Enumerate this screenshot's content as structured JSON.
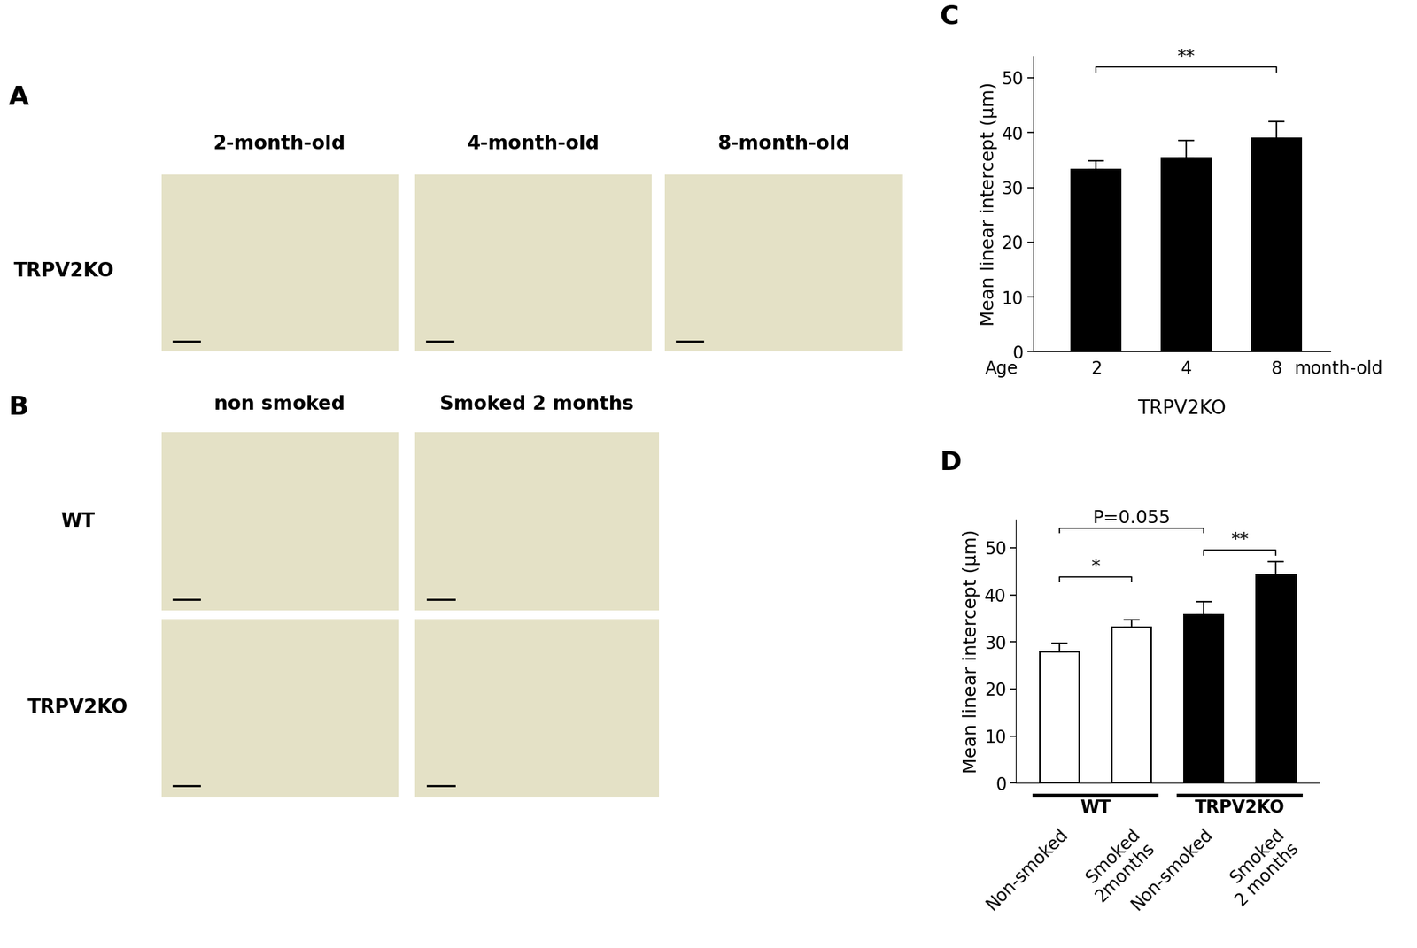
{
  "panels": [
    {
      "label": "A",
      "column_labels": [
        "2-month-old",
        "4-month-old",
        "8-month-old"
      ],
      "row_labels": [
        "TRPV2KO"
      ]
    },
    {
      "label": "B",
      "column_labels": [
        "non smoked",
        "Smoked 2 months"
      ],
      "row_labels": [
        "WT",
        "TRPV2KO"
      ]
    }
  ],
  "chart_data": [
    {
      "type": "bar",
      "label": "C",
      "categories": [
        "2",
        "4",
        "8"
      ],
      "values": [
        33.3,
        35.4,
        39.0
      ],
      "errors": [
        1.5,
        3.2,
        3.0
      ],
      "color": "#000000",
      "ylabel": "Mean linear intercept (μm)",
      "xlabel": "TRPV2KO",
      "x_tick_prefix": "Age",
      "x_tick_suffix": "month-old",
      "ylim": [
        0,
        54
      ],
      "yticks": [
        0,
        10,
        20,
        30,
        40,
        50
      ],
      "annotations": [
        {
          "text": "**",
          "from": 0,
          "to": 2,
          "y": 52
        }
      ]
    },
    {
      "type": "bar",
      "label": "D",
      "categories": [
        "Non-smoked",
        "Smoked 2months",
        "Non-smoked",
        "Smoked 2 months"
      ],
      "values": [
        27.8,
        33.2,
        35.8,
        44.2
      ],
      "errors": [
        2.0,
        1.5,
        2.7,
        2.9
      ],
      "colors": [
        "#ffffff",
        "#ffffff",
        "#000000",
        "#000000"
      ],
      "ylabel": "Mean linear intercept (μm)",
      "ylim": [
        0,
        56
      ],
      "yticks": [
        0,
        10,
        20,
        30,
        40,
        50
      ],
      "groups": [
        {
          "name": "WT",
          "from": 0,
          "to": 1
        },
        {
          "name": "TRPV2KO",
          "from": 2,
          "to": 3
        }
      ],
      "annotations": [
        {
          "text": "*",
          "from": 0,
          "to": 1,
          "y": 43.8
        },
        {
          "text": "**",
          "from": 2,
          "to": 3,
          "y": 49.5
        },
        {
          "text": "P=0.055",
          "from": 0,
          "to": 2,
          "y": 54.2
        }
      ]
    }
  ]
}
